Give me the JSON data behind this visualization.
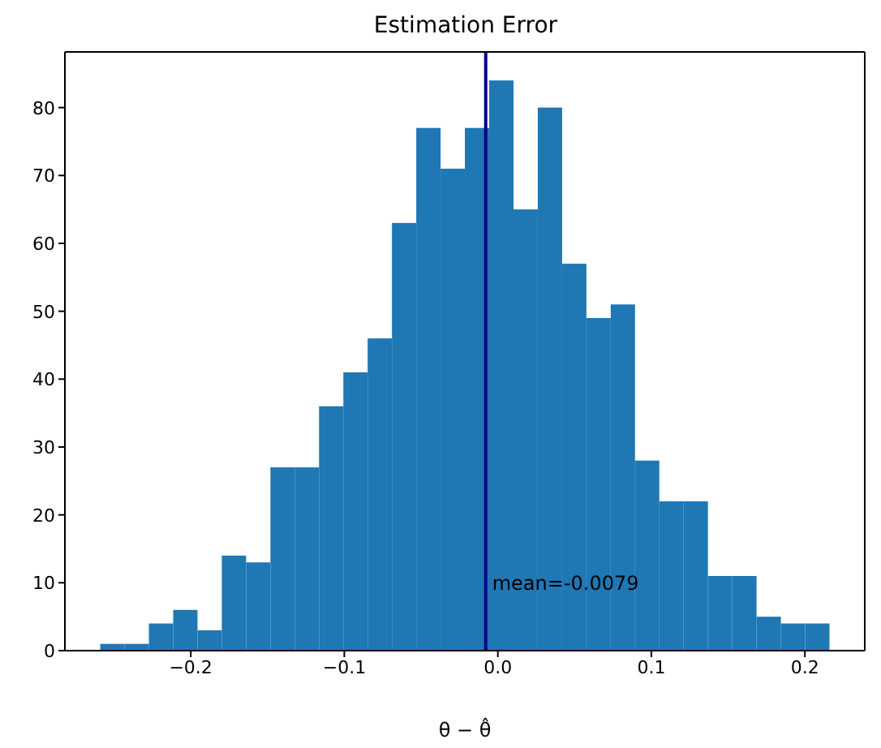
{
  "chart_data": {
    "type": "histogram",
    "title": "Estimation Error",
    "xlabel": "θ − θ̂",
    "color": "#1f77b4",
    "bins": [
      -0.259,
      -0.2432,
      -0.2274,
      -0.2116,
      -0.1958,
      -0.18,
      -0.1642,
      -0.1484,
      -0.1326,
      -0.1168,
      -0.101,
      -0.0852,
      -0.0694,
      -0.0536,
      -0.0378,
      -0.022,
      -0.0062,
      0.0096,
      0.0254,
      0.0412,
      0.057,
      0.0728,
      0.0886,
      0.1044,
      0.1202,
      0.136,
      0.1518,
      0.1676,
      0.1834,
      0.1992,
      0.215
    ],
    "values": [
      1,
      1,
      4,
      6,
      3,
      14,
      13,
      27,
      27,
      36,
      41,
      46,
      63,
      77,
      71,
      77,
      84,
      65,
      80,
      57,
      49,
      51,
      28,
      22,
      22,
      11,
      11,
      5,
      4,
      4
    ],
    "xlim": [
      -0.282,
      0.239
    ],
    "xticks": [
      {
        "value": -0.2,
        "label": "−0.2"
      },
      {
        "value": -0.1,
        "label": "−0.1"
      },
      {
        "value": 0,
        "label": "0.0"
      },
      {
        "value": 0.1,
        "label": "0.1"
      },
      {
        "value": 0.2,
        "label": "0.2"
      }
    ],
    "ylim": [
      0,
      88.2
    ],
    "yticks": [
      0,
      10,
      20,
      30,
      40,
      50,
      60,
      70,
      80
    ],
    "ref_lines": [
      {
        "axis": "x",
        "value": -0.0079,
        "color": "#00008b"
      }
    ],
    "annotations": [
      {
        "text": "mean=-0.0079",
        "x": -0.0079,
        "y": 10
      }
    ],
    "grid": false,
    "legend": false
  }
}
